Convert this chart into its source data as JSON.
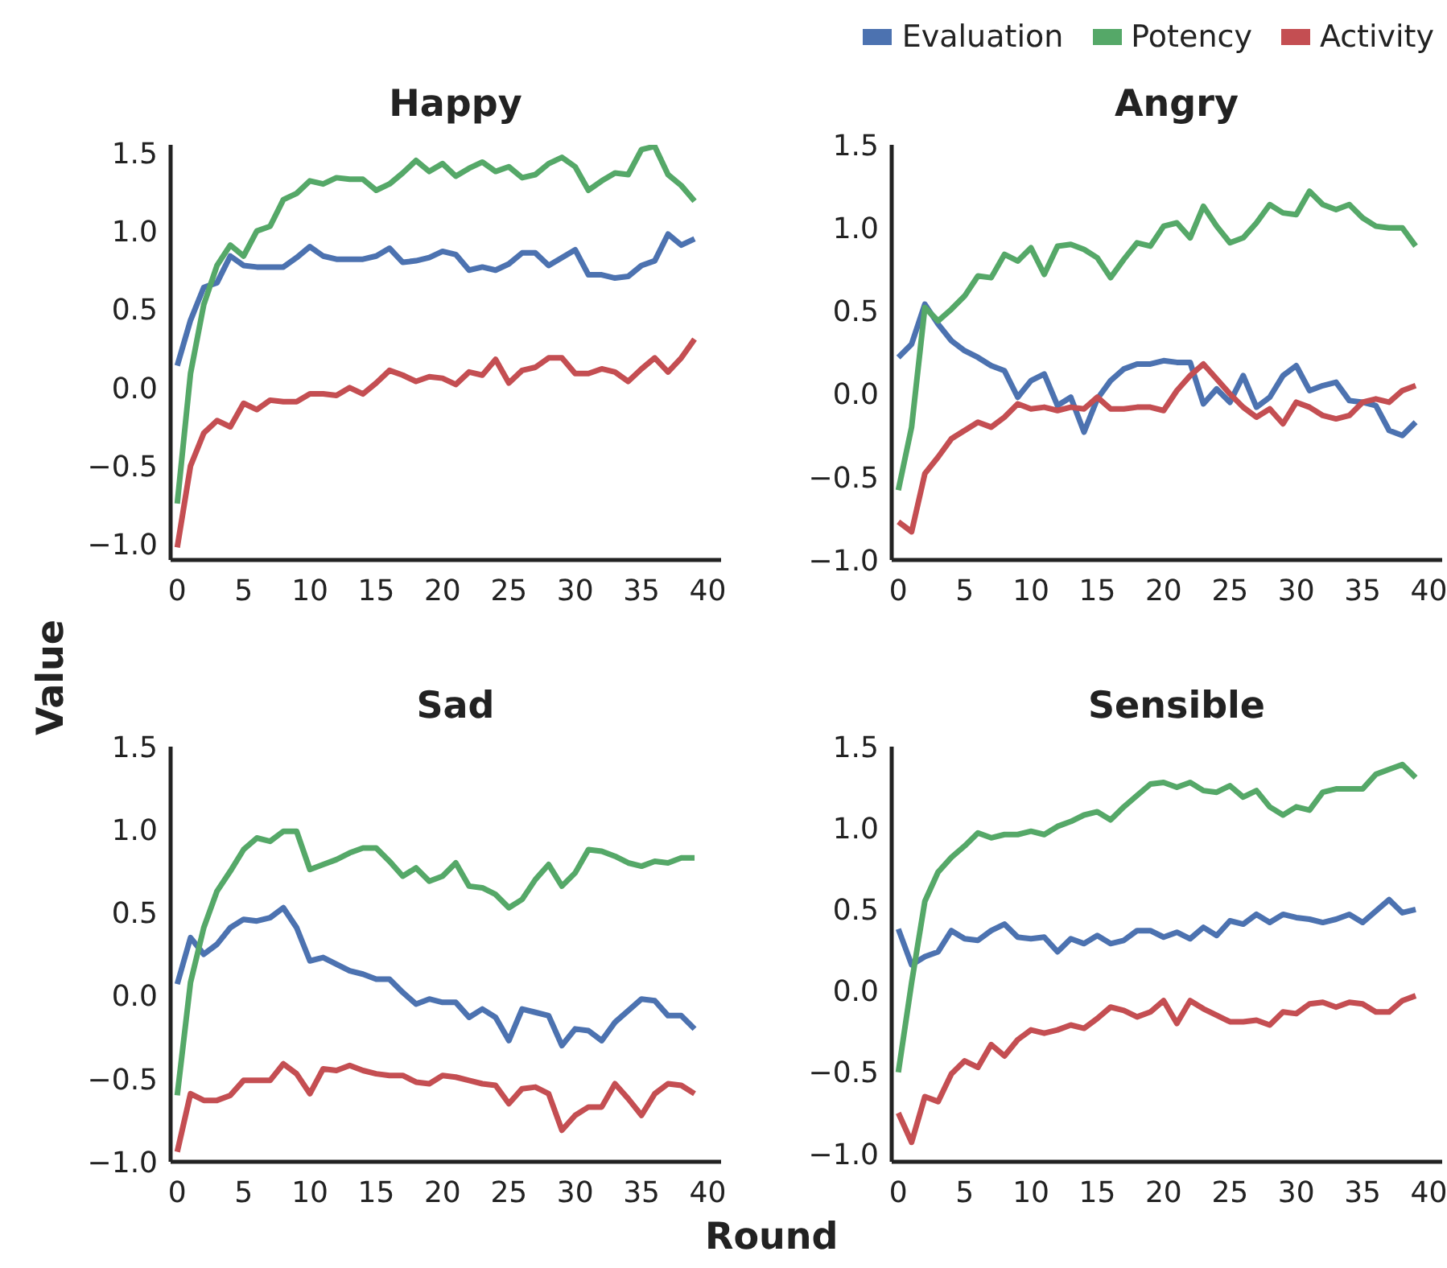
{
  "chart_data": [
    {
      "type": "line",
      "title": "Happy",
      "ylabel": "Value",
      "legend": "top right",
      "x": [
        0,
        1,
        2,
        3,
        4,
        5,
        6,
        7,
        8,
        9,
        10,
        11,
        12,
        13,
        14,
        15,
        16,
        17,
        18,
        19,
        20,
        21,
        22,
        23,
        24,
        25,
        26,
        27,
        28,
        29,
        30,
        31,
        32,
        33,
        34,
        35,
        36,
        37,
        38,
        39
      ],
      "xlim": [
        -0.5,
        41
      ],
      "xticks": [
        0,
        5,
        10,
        15,
        20,
        25,
        30,
        35,
        40
      ],
      "ylim": [
        -1.1,
        1.55
      ],
      "yticks": [
        {
          "value": -1,
          "label": "−1.0"
        },
        {
          "value": -0.5,
          "label": "−0.5"
        },
        {
          "value": 0,
          "label": "0.0"
        },
        {
          "value": 0.5,
          "label": "0.5"
        },
        {
          "value": 1,
          "label": "1.0"
        },
        {
          "value": 1.5,
          "label": "1.5"
        }
      ],
      "series": [
        {
          "name": "Evaluation",
          "color": "#4c72b0",
          "values": [
            0.14,
            0.43,
            0.64,
            0.67,
            0.84,
            0.78,
            0.77,
            0.77,
            0.77,
            0.83,
            0.9,
            0.84,
            0.82,
            0.82,
            0.82,
            0.84,
            0.89,
            0.8,
            0.81,
            0.83,
            0.87,
            0.85,
            0.75,
            0.77,
            0.75,
            0.79,
            0.86,
            0.86,
            0.78,
            0.83,
            0.88,
            0.72,
            0.72,
            0.7,
            0.71,
            0.78,
            0.81,
            0.98,
            0.91,
            0.95
          ]
        },
        {
          "name": "Potency",
          "color": "#55a868",
          "values": [
            -0.74,
            0.09,
            0.53,
            0.78,
            0.91,
            0.84,
            1.0,
            1.03,
            1.2,
            1.24,
            1.32,
            1.3,
            1.34,
            1.33,
            1.33,
            1.26,
            1.3,
            1.37,
            1.45,
            1.38,
            1.43,
            1.35,
            1.4,
            1.44,
            1.38,
            1.41,
            1.34,
            1.36,
            1.43,
            1.47,
            1.41,
            1.26,
            1.32,
            1.37,
            1.36,
            1.52,
            1.54,
            1.36,
            1.29,
            1.19
          ]
        },
        {
          "name": "Activity",
          "color": "#c44e52",
          "values": [
            -1.02,
            -0.5,
            -0.29,
            -0.21,
            -0.25,
            -0.1,
            -0.14,
            -0.08,
            -0.09,
            -0.09,
            -0.04,
            -0.04,
            -0.05,
            0.0,
            -0.04,
            0.03,
            0.11,
            0.08,
            0.04,
            0.07,
            0.06,
            0.02,
            0.1,
            0.08,
            0.18,
            0.03,
            0.11,
            0.13,
            0.19,
            0.19,
            0.09,
            0.09,
            0.12,
            0.1,
            0.04,
            0.12,
            0.19,
            0.1,
            0.19,
            0.31
          ]
        }
      ]
    },
    {
      "type": "line",
      "title": "Angry",
      "x": [
        0,
        1,
        2,
        3,
        4,
        5,
        6,
        7,
        8,
        9,
        10,
        11,
        12,
        13,
        14,
        15,
        16,
        17,
        18,
        19,
        20,
        21,
        22,
        23,
        24,
        25,
        26,
        27,
        28,
        29,
        30,
        31,
        32,
        33,
        34,
        35,
        36,
        37,
        38,
        39
      ],
      "xlim": [
        -0.5,
        41
      ],
      "xticks": [
        0,
        5,
        10,
        15,
        20,
        25,
        30,
        35,
        40
      ],
      "ylim": [
        -1,
        1.5
      ],
      "yticks": [
        {
          "value": -1,
          "label": "−1.0"
        },
        {
          "value": -0.5,
          "label": "−0.5"
        },
        {
          "value": 0,
          "label": "0.0"
        },
        {
          "value": 0.5,
          "label": "0.5"
        },
        {
          "value": 1,
          "label": "1.0"
        },
        {
          "value": 1.5,
          "label": "1.5"
        }
      ],
      "series": [
        {
          "color": "#4c72b0",
          "values": [
            0.22,
            0.3,
            0.54,
            0.42,
            0.32,
            0.26,
            0.22,
            0.17,
            0.14,
            -0.02,
            0.08,
            0.12,
            -0.07,
            -0.02,
            -0.23,
            -0.03,
            0.08,
            0.15,
            0.18,
            0.18,
            0.2,
            0.19,
            0.19,
            -0.06,
            0.03,
            -0.05,
            0.11,
            -0.08,
            -0.02,
            0.11,
            0.17,
            0.02,
            0.05,
            0.07,
            -0.04,
            -0.05,
            -0.07,
            -0.22,
            -0.25,
            -0.17
          ]
        },
        {
          "color": "#55a868",
          "values": [
            -0.58,
            -0.2,
            0.52,
            0.44,
            0.51,
            0.59,
            0.71,
            0.7,
            0.84,
            0.8,
            0.88,
            0.72,
            0.89,
            0.9,
            0.87,
            0.82,
            0.7,
            0.81,
            0.91,
            0.89,
            1.01,
            1.03,
            0.94,
            1.13,
            1.01,
            0.91,
            0.94,
            1.03,
            1.14,
            1.09,
            1.08,
            1.22,
            1.14,
            1.11,
            1.14,
            1.06,
            1.01,
            1.0,
            1.0,
            0.89
          ]
        },
        {
          "color": "#c44e52",
          "values": [
            -0.77,
            -0.83,
            -0.48,
            -0.38,
            -0.27,
            -0.22,
            -0.17,
            -0.2,
            -0.14,
            -0.06,
            -0.09,
            -0.08,
            -0.1,
            -0.08,
            -0.09,
            -0.02,
            -0.09,
            -0.09,
            -0.08,
            -0.08,
            -0.1,
            0.02,
            0.11,
            0.18,
            0.09,
            0.0,
            -0.08,
            -0.14,
            -0.09,
            -0.18,
            -0.05,
            -0.08,
            -0.13,
            -0.15,
            -0.13,
            -0.05,
            -0.03,
            -0.05,
            0.02,
            0.05
          ]
        }
      ]
    },
    {
      "type": "line",
      "title": "Sad",
      "xlabel": "Round",
      "x": [
        0,
        1,
        2,
        3,
        4,
        5,
        6,
        7,
        8,
        9,
        10,
        11,
        12,
        13,
        14,
        15,
        16,
        17,
        18,
        19,
        20,
        21,
        22,
        23,
        24,
        25,
        26,
        27,
        28,
        29,
        30,
        31,
        32,
        33,
        34,
        35,
        36,
        37,
        38,
        39
      ],
      "xlim": [
        -0.5,
        41
      ],
      "xticks": [
        0,
        5,
        10,
        15,
        20,
        25,
        30,
        35,
        40
      ],
      "ylim": [
        -1,
        1.5
      ],
      "yticks": [
        {
          "value": -1,
          "label": "−1.0"
        },
        {
          "value": -0.5,
          "label": "−0.5"
        },
        {
          "value": 0,
          "label": "0.0"
        },
        {
          "value": 0.5,
          "label": "0.5"
        },
        {
          "value": 1,
          "label": "1.0"
        },
        {
          "value": 1.5,
          "label": "1.5"
        }
      ],
      "series": [
        {
          "color": "#4c72b0",
          "values": [
            0.07,
            0.35,
            0.25,
            0.31,
            0.41,
            0.46,
            0.45,
            0.47,
            0.53,
            0.41,
            0.21,
            0.23,
            0.19,
            0.15,
            0.13,
            0.1,
            0.1,
            0.02,
            -0.05,
            -0.02,
            -0.04,
            -0.04,
            -0.13,
            -0.08,
            -0.13,
            -0.27,
            -0.08,
            -0.1,
            -0.12,
            -0.3,
            -0.2,
            -0.21,
            -0.27,
            -0.16,
            -0.09,
            -0.02,
            -0.03,
            -0.12,
            -0.12,
            -0.2
          ]
        },
        {
          "color": "#55a868",
          "values": [
            -0.6,
            0.08,
            0.41,
            0.63,
            0.75,
            0.88,
            0.95,
            0.93,
            0.99,
            0.99,
            0.76,
            0.79,
            0.82,
            0.86,
            0.89,
            0.89,
            0.81,
            0.72,
            0.77,
            0.69,
            0.72,
            0.8,
            0.66,
            0.65,
            0.61,
            0.53,
            0.58,
            0.7,
            0.79,
            0.66,
            0.74,
            0.88,
            0.87,
            0.84,
            0.8,
            0.78,
            0.81,
            0.8,
            0.83,
            0.83
          ]
        },
        {
          "color": "#c44e52",
          "values": [
            -0.94,
            -0.59,
            -0.63,
            -0.63,
            -0.6,
            -0.51,
            -0.51,
            -0.51,
            -0.41,
            -0.47,
            -0.59,
            -0.44,
            -0.45,
            -0.42,
            -0.45,
            -0.47,
            -0.48,
            -0.48,
            -0.52,
            -0.53,
            -0.48,
            -0.49,
            -0.51,
            -0.53,
            -0.54,
            -0.65,
            -0.56,
            -0.55,
            -0.59,
            -0.81,
            -0.72,
            -0.67,
            -0.67,
            -0.53,
            -0.62,
            -0.72,
            -0.59,
            -0.53,
            -0.54,
            -0.59
          ]
        }
      ]
    },
    {
      "type": "line",
      "title": "Sensible",
      "x": [
        0,
        1,
        2,
        3,
        4,
        5,
        6,
        7,
        8,
        9,
        10,
        11,
        12,
        13,
        14,
        15,
        16,
        17,
        18,
        19,
        20,
        21,
        22,
        23,
        24,
        25,
        26,
        27,
        28,
        29,
        30,
        31,
        32,
        33,
        34,
        35,
        36,
        37,
        38,
        39
      ],
      "xlim": [
        -0.5,
        41
      ],
      "xticks": [
        0,
        5,
        10,
        15,
        20,
        25,
        30,
        35,
        40
      ],
      "ylim": [
        -1.05,
        1.5
      ],
      "yticks": [
        {
          "value": -1,
          "label": "−1.0"
        },
        {
          "value": -0.5,
          "label": "−0.5"
        },
        {
          "value": 0,
          "label": "0.0"
        },
        {
          "value": 0.5,
          "label": "0.5"
        },
        {
          "value": 1,
          "label": "1.0"
        },
        {
          "value": 1.5,
          "label": "1.5"
        }
      ],
      "series": [
        {
          "color": "#4c72b0",
          "values": [
            0.38,
            0.16,
            0.21,
            0.24,
            0.37,
            0.32,
            0.31,
            0.37,
            0.41,
            0.33,
            0.32,
            0.33,
            0.24,
            0.32,
            0.29,
            0.34,
            0.29,
            0.31,
            0.37,
            0.37,
            0.33,
            0.36,
            0.32,
            0.39,
            0.34,
            0.43,
            0.41,
            0.47,
            0.42,
            0.47,
            0.45,
            0.44,
            0.42,
            0.44,
            0.47,
            0.42,
            0.49,
            0.56,
            0.48,
            0.5
          ]
        },
        {
          "color": "#55a868",
          "values": [
            -0.5,
            0.05,
            0.55,
            0.73,
            0.82,
            0.89,
            0.97,
            0.94,
            0.96,
            0.96,
            0.98,
            0.96,
            1.01,
            1.04,
            1.08,
            1.1,
            1.05,
            1.13,
            1.2,
            1.27,
            1.28,
            1.25,
            1.28,
            1.23,
            1.22,
            1.26,
            1.19,
            1.23,
            1.13,
            1.08,
            1.13,
            1.11,
            1.22,
            1.24,
            1.24,
            1.24,
            1.33,
            1.36,
            1.39,
            1.31
          ]
        },
        {
          "color": "#c44e52",
          "values": [
            -0.75,
            -0.93,
            -0.65,
            -0.68,
            -0.51,
            -0.43,
            -0.47,
            -0.33,
            -0.4,
            -0.3,
            -0.24,
            -0.26,
            -0.24,
            -0.21,
            -0.23,
            -0.17,
            -0.1,
            -0.12,
            -0.16,
            -0.13,
            -0.06,
            -0.2,
            -0.06,
            -0.11,
            -0.15,
            -0.19,
            -0.19,
            -0.18,
            -0.21,
            -0.13,
            -0.14,
            -0.08,
            -0.07,
            -0.1,
            -0.07,
            -0.08,
            -0.13,
            -0.13,
            -0.06,
            -0.03
          ]
        }
      ]
    }
  ]
}
